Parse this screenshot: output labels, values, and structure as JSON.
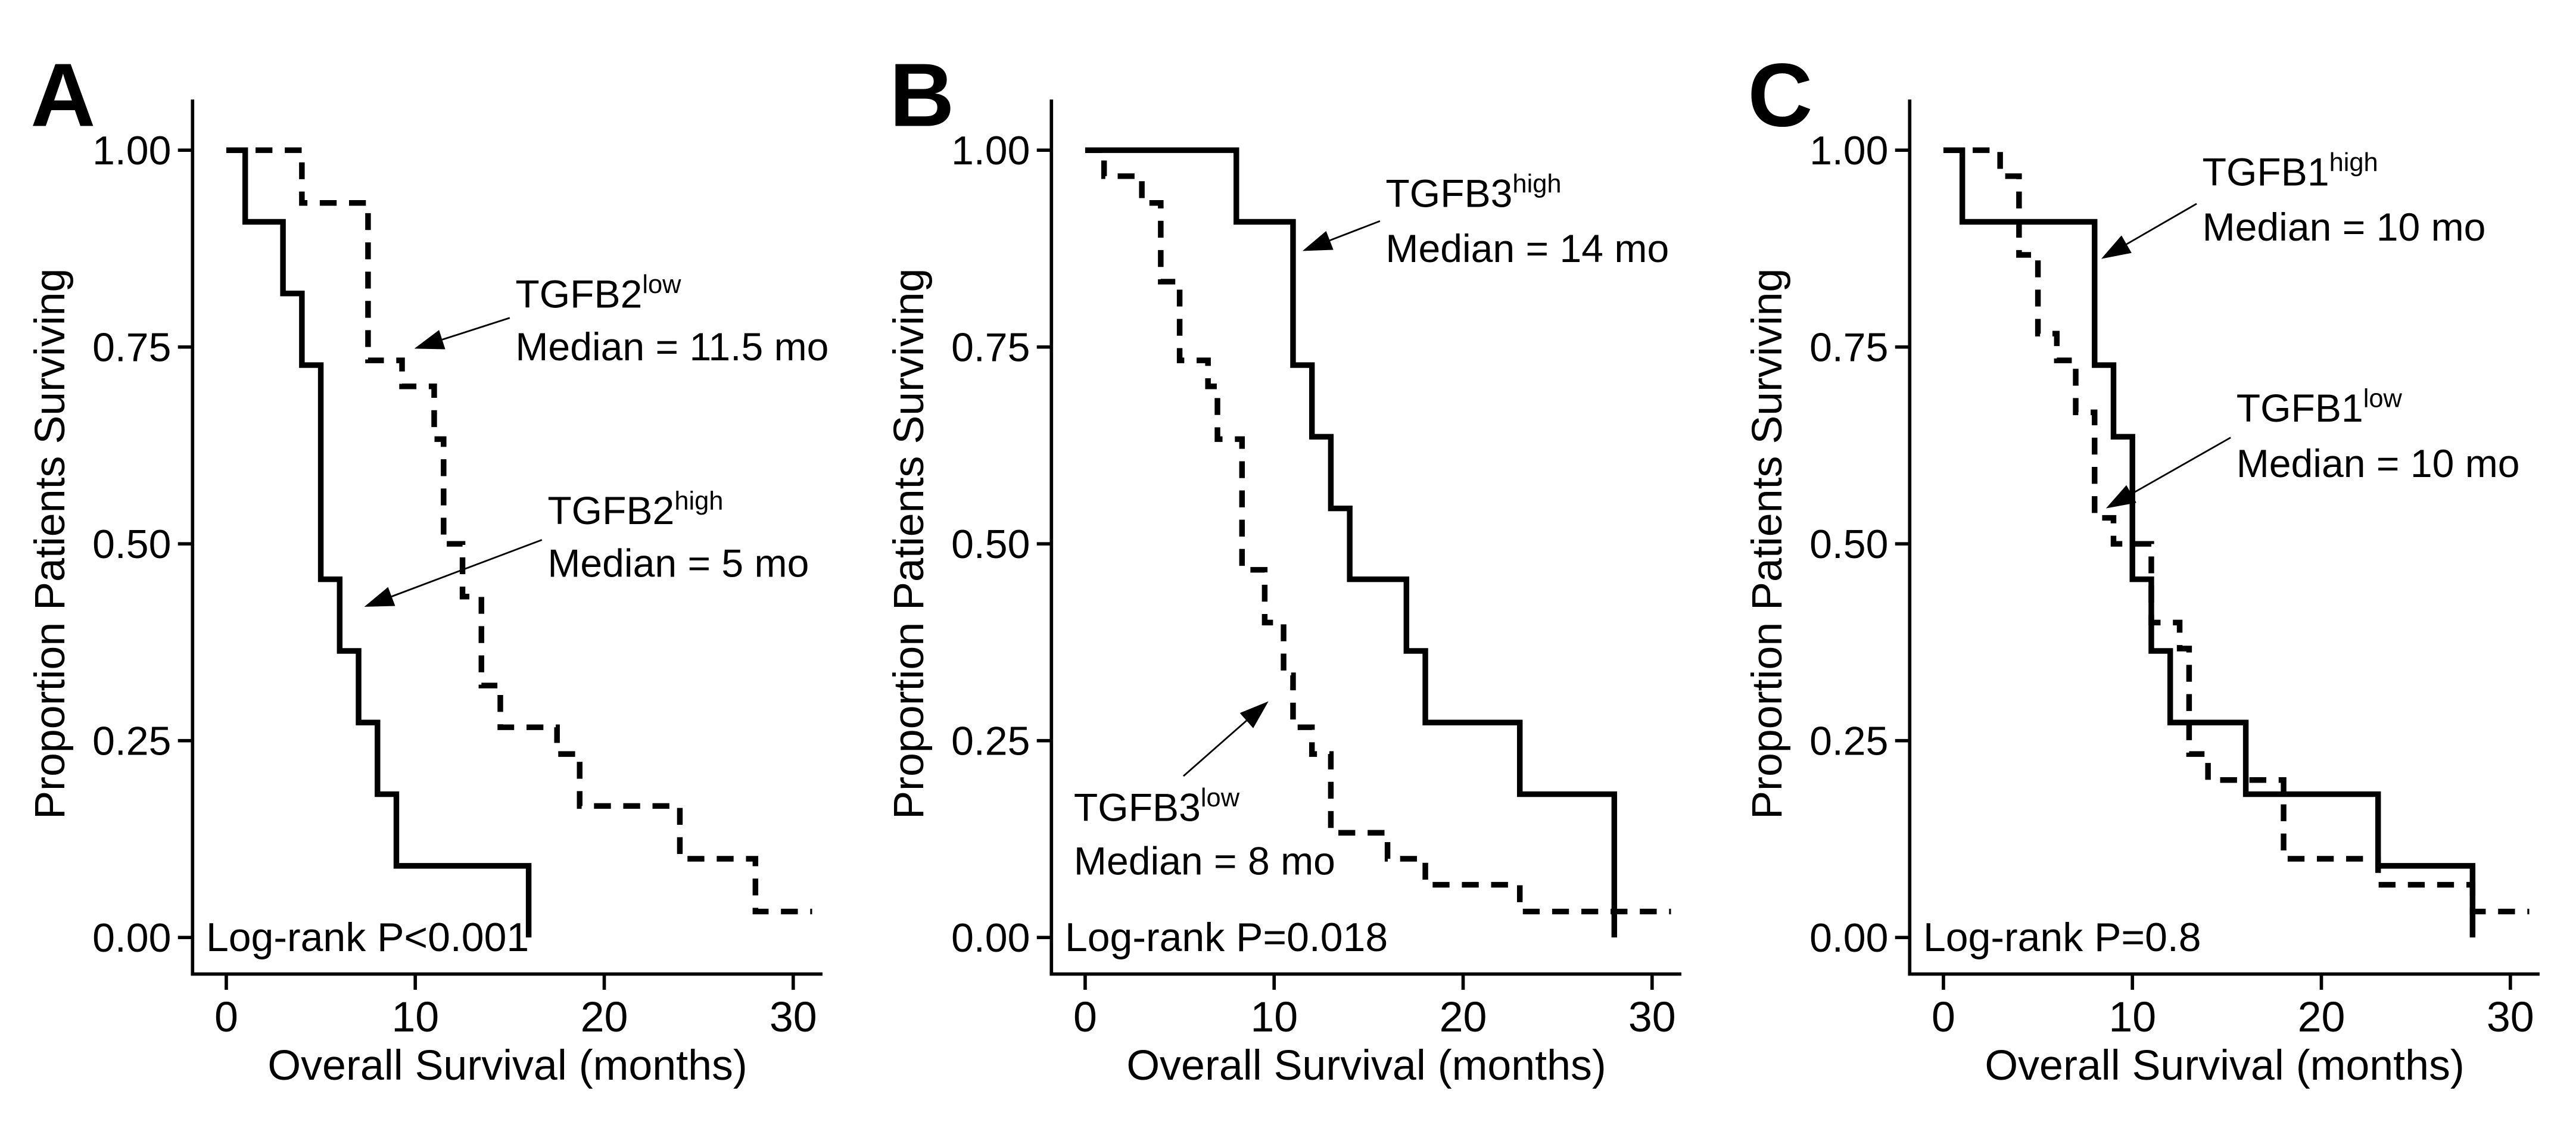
{
  "figure": {
    "background_color": "#ffffff",
    "foreground_color": "#000000",
    "x_axis_label": "Overall Survival (months)",
    "y_axis_label": "Proportion Patients Surviving",
    "x_ticks": [
      {
        "v": 0,
        "label": "0"
      },
      {
        "v": 10,
        "label": "10"
      },
      {
        "v": 20,
        "label": "20"
      },
      {
        "v": 30,
        "label": "30"
      }
    ],
    "y_ticks": [
      {
        "v": 0,
        "label": "0.00"
      },
      {
        "v": 0.25,
        "label": "0.25"
      },
      {
        "v": 0.5,
        "label": "0.50"
      },
      {
        "v": 0.75,
        "label": "0.75"
      },
      {
        "v": 1,
        "label": "1.00"
      }
    ]
  },
  "chart_data": [
    {
      "type": "line",
      "subtype": "kaplan-meier-step",
      "panel": "A",
      "xlabel": "Overall Survival (months)",
      "ylabel": "Proportion Patients Surviving",
      "xlim": [
        0,
        31.5
      ],
      "ylim": [
        0,
        1
      ],
      "grid": false,
      "legend_position": "annotated-arrows",
      "x_ticks": [
        {
          "v": 0,
          "label": "0"
        },
        {
          "v": 10,
          "label": "10"
        },
        {
          "v": 20,
          "label": "20"
        },
        {
          "v": 30,
          "label": "30"
        }
      ],
      "y_ticks": [
        {
          "v": 0,
          "label": "0.00"
        },
        {
          "v": 0.25,
          "label": "0.25"
        },
        {
          "v": 0.5,
          "label": "0.50"
        },
        {
          "v": 0.75,
          "label": "0.75"
        },
        {
          "v": 1,
          "label": "1.00"
        }
      ],
      "logrank_label": "Log-rank P<0.001",
      "series": [
        {
          "gene": "TGFB2",
          "level": "high",
          "label": "TGFB2high",
          "line_style": "solid",
          "median_label": "Median = 5 mo",
          "median_months": 5,
          "steps": [
            [
              0,
              1
            ],
            [
              1,
              1
            ],
            [
              1,
              0.909
            ],
            [
              3,
              0.909
            ],
            [
              3,
              0.818
            ],
            [
              4,
              0.818
            ],
            [
              4,
              0.727
            ],
            [
              5,
              0.727
            ],
            [
              5,
              0.455
            ],
            [
              6,
              0.455
            ],
            [
              6,
              0.364
            ],
            [
              7,
              0.364
            ],
            [
              7,
              0.273
            ],
            [
              8,
              0.273
            ],
            [
              8,
              0.182
            ],
            [
              9,
              0.182
            ],
            [
              9,
              0.091
            ],
            [
              16,
              0.091
            ],
            [
              16,
              0
            ]
          ]
        },
        {
          "gene": "TGFB2",
          "level": "low",
          "label": "TGFB2low",
          "line_style": "dashed",
          "median_label": "Median = 11.5 mo",
          "median_months": 11.5,
          "steps": [
            [
              0,
              1
            ],
            [
              4,
              1
            ],
            [
              4,
              0.933
            ],
            [
              7.5,
              0.933
            ],
            [
              7.5,
              0.733
            ],
            [
              9.3,
              0.733
            ],
            [
              9.3,
              0.7
            ],
            [
              11,
              0.7
            ],
            [
              11,
              0.633
            ],
            [
              11.5,
              0.633
            ],
            [
              11.5,
              0.5
            ],
            [
              12.5,
              0.5
            ],
            [
              12.5,
              0.433
            ],
            [
              13.5,
              0.433
            ],
            [
              13.5,
              0.32
            ],
            [
              14.5,
              0.32
            ],
            [
              14.5,
              0.267
            ],
            [
              17.5,
              0.267
            ],
            [
              17.5,
              0.233
            ],
            [
              18.7,
              0.233
            ],
            [
              18.7,
              0.167
            ],
            [
              24,
              0.167
            ],
            [
              24,
              0.1
            ],
            [
              28,
              0.1
            ],
            [
              28,
              0.033
            ],
            [
              31,
              0.033
            ]
          ]
        }
      ],
      "annotations": [
        {
          "target": "TGFB2low",
          "line1": "TGFB2",
          "sup": "low",
          "line2": "Median = 11.5 mo",
          "text_x": 15.3,
          "line1_y": 0.8,
          "line2_y": 0.733,
          "arrow_from": [
            15.0,
            0.787
          ],
          "arrow_to": [
            9.95,
            0.748
          ]
        },
        {
          "target": "TGFB2high",
          "line1": "TGFB2",
          "sup": "high",
          "line2": "Median = 5 mo",
          "text_x": 17.0,
          "line1_y": 0.525,
          "line2_y": 0.458,
          "arrow_from": [
            16.7,
            0.505
          ],
          "arrow_to": [
            7.3,
            0.42
          ]
        }
      ]
    },
    {
      "type": "line",
      "subtype": "kaplan-meier-step",
      "panel": "B",
      "xlabel": "Overall Survival (months)",
      "ylabel": "Proportion Patients Surviving",
      "xlim": [
        0,
        31.5
      ],
      "ylim": [
        0,
        1
      ],
      "grid": false,
      "legend_position": "annotated-arrows",
      "x_ticks": [
        {
          "v": 0,
          "label": "0"
        },
        {
          "v": 10,
          "label": "10"
        },
        {
          "v": 20,
          "label": "20"
        },
        {
          "v": 30,
          "label": "30"
        }
      ],
      "y_ticks": [
        {
          "v": 0,
          "label": "0.00"
        },
        {
          "v": 0.25,
          "label": "0.25"
        },
        {
          "v": 0.5,
          "label": "0.50"
        },
        {
          "v": 0.75,
          "label": "0.75"
        },
        {
          "v": 1,
          "label": "1.00"
        }
      ],
      "logrank_label": "Log-rank P=0.018",
      "series": [
        {
          "gene": "TGFB3",
          "level": "high",
          "label": "TGFB3high",
          "line_style": "solid",
          "median_label": "Median = 14 mo",
          "median_months": 14,
          "steps": [
            [
              0,
              1
            ],
            [
              8,
              1
            ],
            [
              8,
              0.909
            ],
            [
              11,
              0.909
            ],
            [
              11,
              0.727
            ],
            [
              12,
              0.727
            ],
            [
              12,
              0.636
            ],
            [
              13,
              0.636
            ],
            [
              13,
              0.545
            ],
            [
              14,
              0.545
            ],
            [
              14,
              0.455
            ],
            [
              17,
              0.455
            ],
            [
              17,
              0.364
            ],
            [
              18,
              0.364
            ],
            [
              18,
              0.273
            ],
            [
              23,
              0.273
            ],
            [
              23,
              0.182
            ],
            [
              28,
              0.182
            ],
            [
              28,
              0
            ]
          ]
        },
        {
          "gene": "TGFB3",
          "level": "low",
          "label": "TGFB3low",
          "line_style": "dashed",
          "median_label": "Median = 8 mo",
          "median_months": 8,
          "steps": [
            [
              0,
              1
            ],
            [
              1,
              1
            ],
            [
              1,
              0.967
            ],
            [
              3,
              0.967
            ],
            [
              3,
              0.933
            ],
            [
              4,
              0.933
            ],
            [
              4,
              0.833
            ],
            [
              5,
              0.833
            ],
            [
              5,
              0.733
            ],
            [
              6.5,
              0.733
            ],
            [
              6.5,
              0.7
            ],
            [
              7,
              0.7
            ],
            [
              7,
              0.633
            ],
            [
              8.3,
              0.633
            ],
            [
              8.3,
              0.467
            ],
            [
              9.5,
              0.467
            ],
            [
              9.5,
              0.4
            ],
            [
              10.5,
              0.4
            ],
            [
              10.5,
              0.333
            ],
            [
              11,
              0.333
            ],
            [
              11,
              0.267
            ],
            [
              12,
              0.267
            ],
            [
              12,
              0.233
            ],
            [
              13,
              0.233
            ],
            [
              13,
              0.133
            ],
            [
              16,
              0.133
            ],
            [
              16,
              0.1
            ],
            [
              18,
              0.1
            ],
            [
              18,
              0.067
            ],
            [
              23,
              0.067
            ],
            [
              23,
              0.033
            ],
            [
              31,
              0.033
            ]
          ]
        }
      ],
      "annotations": [
        {
          "target": "TGFB3high",
          "line1": "TGFB3",
          "sup": "high",
          "line2": "Median = 14 mo",
          "text_x": 15.9,
          "line1_y": 0.928,
          "line2_y": 0.858,
          "arrow_from": [
            15.6,
            0.91
          ],
          "arrow_to": [
            11.5,
            0.872
          ]
        },
        {
          "target": "TGFB3low",
          "line1": "TGFB3",
          "sup": "low",
          "line2": "Median = 8 mo",
          "text_x": -0.6,
          "line1_y": 0.148,
          "line2_y": 0.08,
          "arrow_from": [
            5.2,
            0.205
          ],
          "arrow_to": [
            9.7,
            0.3
          ]
        }
      ]
    },
    {
      "type": "line",
      "subtype": "kaplan-meier-step",
      "panel": "C",
      "xlabel": "Overall Survival (months)",
      "ylabel": "Proportion Patients Surviving",
      "xlim": [
        0,
        31.5
      ],
      "ylim": [
        0,
        1
      ],
      "grid": false,
      "legend_position": "annotated-arrows",
      "x_ticks": [
        {
          "v": 0,
          "label": "0"
        },
        {
          "v": 10,
          "label": "10"
        },
        {
          "v": 20,
          "label": "20"
        },
        {
          "v": 30,
          "label": "30"
        }
      ],
      "y_ticks": [
        {
          "v": 0,
          "label": "0.00"
        },
        {
          "v": 0.25,
          "label": "0.25"
        },
        {
          "v": 0.5,
          "label": "0.50"
        },
        {
          "v": 0.75,
          "label": "0.75"
        },
        {
          "v": 1,
          "label": "1.00"
        }
      ],
      "logrank_label": "Log-rank P=0.8",
      "series": [
        {
          "gene": "TGFB1",
          "level": "high",
          "label": "TGFB1high",
          "line_style": "solid",
          "median_label": "Median = 10 mo",
          "median_months": 10,
          "steps": [
            [
              0,
              1
            ],
            [
              1,
              1
            ],
            [
              1,
              0.909
            ],
            [
              8,
              0.909
            ],
            [
              8,
              0.727
            ],
            [
              9,
              0.727
            ],
            [
              9,
              0.636
            ],
            [
              10,
              0.636
            ],
            [
              10,
              0.455
            ],
            [
              11,
              0.455
            ],
            [
              11,
              0.364
            ],
            [
              12,
              0.364
            ],
            [
              12,
              0.273
            ],
            [
              16,
              0.273
            ],
            [
              16,
              0.182
            ],
            [
              23,
              0.182
            ],
            [
              23,
              0.091
            ],
            [
              28,
              0.091
            ],
            [
              28,
              0
            ]
          ]
        },
        {
          "gene": "TGFB1",
          "level": "low",
          "label": "TGFB1low",
          "line_style": "dashed",
          "median_label": "Median = 10 mo",
          "median_months": 10,
          "steps": [
            [
              0,
              1
            ],
            [
              3,
              1
            ],
            [
              3,
              0.967
            ],
            [
              4,
              0.967
            ],
            [
              4,
              0.867
            ],
            [
              5,
              0.867
            ],
            [
              5,
              0.767
            ],
            [
              6,
              0.767
            ],
            [
              6,
              0.733
            ],
            [
              7,
              0.733
            ],
            [
              7,
              0.667
            ],
            [
              8,
              0.667
            ],
            [
              8,
              0.533
            ],
            [
              9,
              0.533
            ],
            [
              9,
              0.5
            ],
            [
              11,
              0.5
            ],
            [
              11,
              0.4
            ],
            [
              12.5,
              0.4
            ],
            [
              12.5,
              0.367
            ],
            [
              13,
              0.367
            ],
            [
              13,
              0.233
            ],
            [
              14,
              0.233
            ],
            [
              14,
              0.2
            ],
            [
              18,
              0.2
            ],
            [
              18,
              0.1
            ],
            [
              23,
              0.1
            ],
            [
              23,
              0.067
            ],
            [
              28,
              0.067
            ],
            [
              28,
              0.033
            ],
            [
              31,
              0.033
            ]
          ]
        }
      ],
      "annotations": [
        {
          "target": "TGFB1high",
          "line1": "TGFB1",
          "sup": "high",
          "line2": "Median = 10 mo",
          "text_x": 13.7,
          "line1_y": 0.955,
          "line2_y": 0.885,
          "arrow_from": [
            13.4,
            0.932
          ],
          "arrow_to": [
            8.35,
            0.862
          ]
        },
        {
          "target": "TGFB1low",
          "line1": "TGFB1",
          "sup": "low",
          "line2": "Median = 10 mo",
          "text_x": 15.5,
          "line1_y": 0.655,
          "line2_y": 0.585,
          "arrow_from": [
            15.2,
            0.635
          ],
          "arrow_to": [
            8.6,
            0.545
          ]
        }
      ]
    }
  ]
}
